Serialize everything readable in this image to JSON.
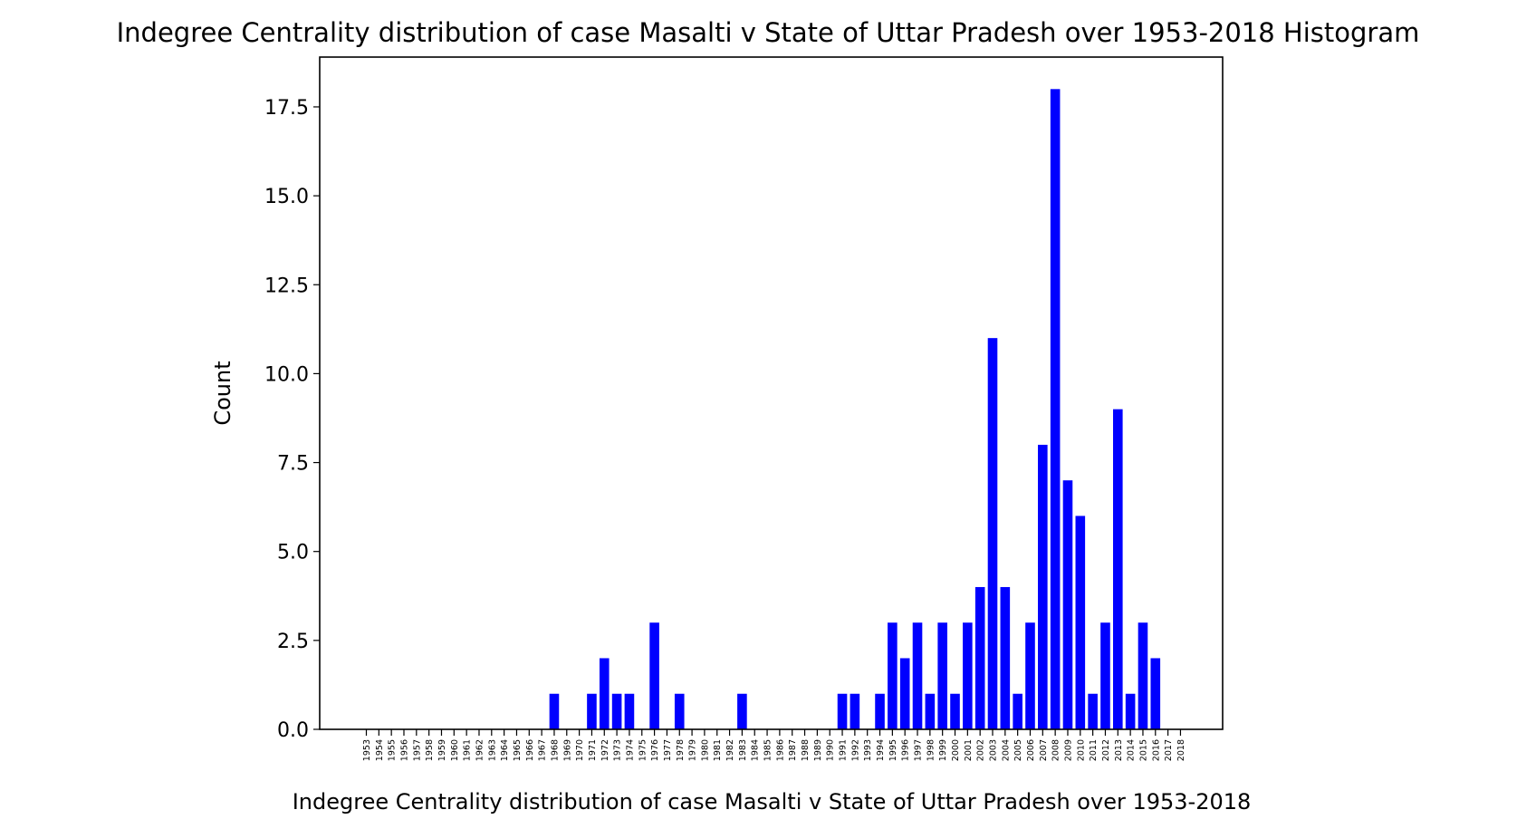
{
  "chart_data": {
    "type": "bar",
    "title": "Indegree Centrality distribution of case Masalti v State of Uttar Pradesh over 1953-2018 Histogram",
    "xlabel": "Indegree Centrality distribution of case Masalti v State of Uttar Pradesh over 1953-2018",
    "ylabel": "Count",
    "ylim": [
      0,
      18.9
    ],
    "yticks": [
      "0.0",
      "2.5",
      "5.0",
      "7.5",
      "10.0",
      "12.5",
      "15.0",
      "17.5"
    ],
    "color": "#0000ff",
    "grid": false,
    "categories": [
      "1953",
      "1954",
      "1955",
      "1956",
      "1957",
      "1958",
      "1959",
      "1960",
      "1961",
      "1962",
      "1963",
      "1964",
      "1965",
      "1966",
      "1967",
      "1968",
      "1969",
      "1970",
      "1971",
      "1972",
      "1973",
      "1974",
      "1975",
      "1976",
      "1977",
      "1978",
      "1979",
      "1980",
      "1981",
      "1982",
      "1983",
      "1984",
      "1985",
      "1986",
      "1987",
      "1988",
      "1989",
      "1990",
      "1991",
      "1992",
      "1993",
      "1994",
      "1995",
      "1996",
      "1997",
      "1998",
      "1999",
      "2000",
      "2001",
      "2002",
      "2003",
      "2004",
      "2005",
      "2006",
      "2007",
      "2008",
      "2009",
      "2010",
      "2011",
      "2012",
      "2013",
      "2014",
      "2015",
      "2016",
      "2017",
      "2018"
    ],
    "values": [
      0,
      0,
      0,
      0,
      0,
      0,
      0,
      0,
      0,
      0,
      0,
      0,
      0,
      0,
      0,
      1,
      0,
      0,
      1,
      2,
      1,
      1,
      0,
      3,
      0,
      1,
      0,
      0,
      0,
      0,
      1,
      0,
      0,
      0,
      0,
      0,
      0,
      0,
      1,
      1,
      0,
      1,
      3,
      2,
      3,
      1,
      3,
      1,
      3,
      4,
      11,
      4,
      1,
      3,
      8,
      18,
      7,
      6,
      1,
      3,
      9,
      1,
      3,
      2,
      0,
      0
    ]
  }
}
